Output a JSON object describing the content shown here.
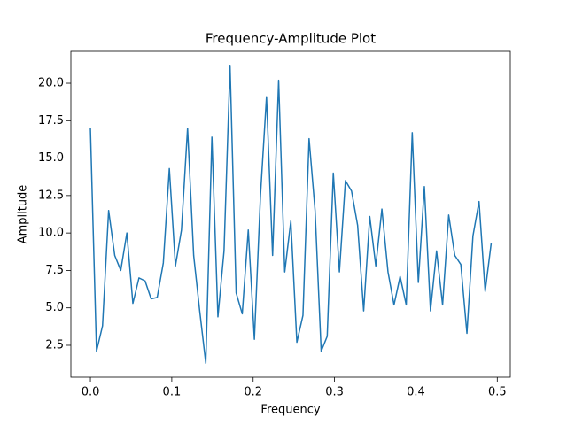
{
  "chart_data": {
    "type": "line",
    "title": "Frequency-Amplitude Plot",
    "x_label": "Frequency",
    "y_label": "Amplitude",
    "x": [
      0,
      0.0075,
      0.0149,
      0.0224,
      0.0299,
      0.0373,
      0.0448,
      0.0522,
      0.0597,
      0.0672,
      0.0746,
      0.0821,
      0.0896,
      0.097,
      0.1045,
      0.1119,
      0.1194,
      0.1269,
      0.1343,
      0.1418,
      0.1493,
      0.1567,
      0.1642,
      0.1716,
      0.1791,
      0.1866,
      0.194,
      0.2015,
      0.209,
      0.2164,
      0.2239,
      0.2313,
      0.2388,
      0.2463,
      0.2537,
      0.2612,
      0.2687,
      0.2761,
      0.2836,
      0.291,
      0.2985,
      0.306,
      0.3134,
      0.3209,
      0.3284,
      0.3358,
      0.3433,
      0.3507,
      0.3582,
      0.3657,
      0.3731,
      0.3806,
      0.3881,
      0.3955,
      0.403,
      0.4104,
      0.4179,
      0.4254,
      0.4328,
      0.4403,
      0.4478,
      0.4552,
      0.4627,
      0.4701,
      0.4776,
      0.4851,
      0.4925
    ],
    "series": [
      {
        "color": "#1f77b4",
        "values": [
          17.0,
          2.1,
          3.8,
          11.5,
          8.5,
          7.5,
          10.0,
          5.3,
          7.0,
          6.8,
          5.6,
          5.7,
          8.0,
          14.3,
          7.8,
          10.2,
          17.0,
          8.5,
          4.8,
          1.3,
          16.4,
          4.4,
          8.8,
          21.2,
          6.0,
          4.6,
          10.2,
          2.9,
          12.5,
          19.1,
          8.5,
          20.2,
          7.4,
          10.8,
          2.7,
          4.5,
          16.3,
          11.5,
          2.1,
          3.1,
          14.0,
          7.4,
          13.5,
          12.8,
          10.5,
          4.8,
          11.1,
          7.8,
          11.6,
          7.4,
          5.2,
          7.1,
          5.2,
          16.7,
          6.7,
          13.1,
          4.8,
          8.8,
          5.2,
          11.2,
          8.5,
          7.9,
          3.3,
          9.8,
          12.1,
          6.1,
          9.3
        ]
      }
    ],
    "xlim": [
      -0.024,
      0.516
    ],
    "ylim": [
      0.37,
      22.13
    ],
    "xticks": [
      {
        "value": 0,
        "label": "0.0"
      },
      0.1,
      0.2,
      0.3,
      0.4,
      0.5
    ],
    "yticks": [
      2.5,
      {
        "value": 5,
        "label": "5.0"
      },
      7.5,
      {
        "value": 10,
        "label": "10.0"
      },
      12.5,
      {
        "value": 15,
        "label": "15.0"
      },
      17.5,
      {
        "value": 20,
        "label": "20.0"
      }
    ],
    "grid": false
  }
}
